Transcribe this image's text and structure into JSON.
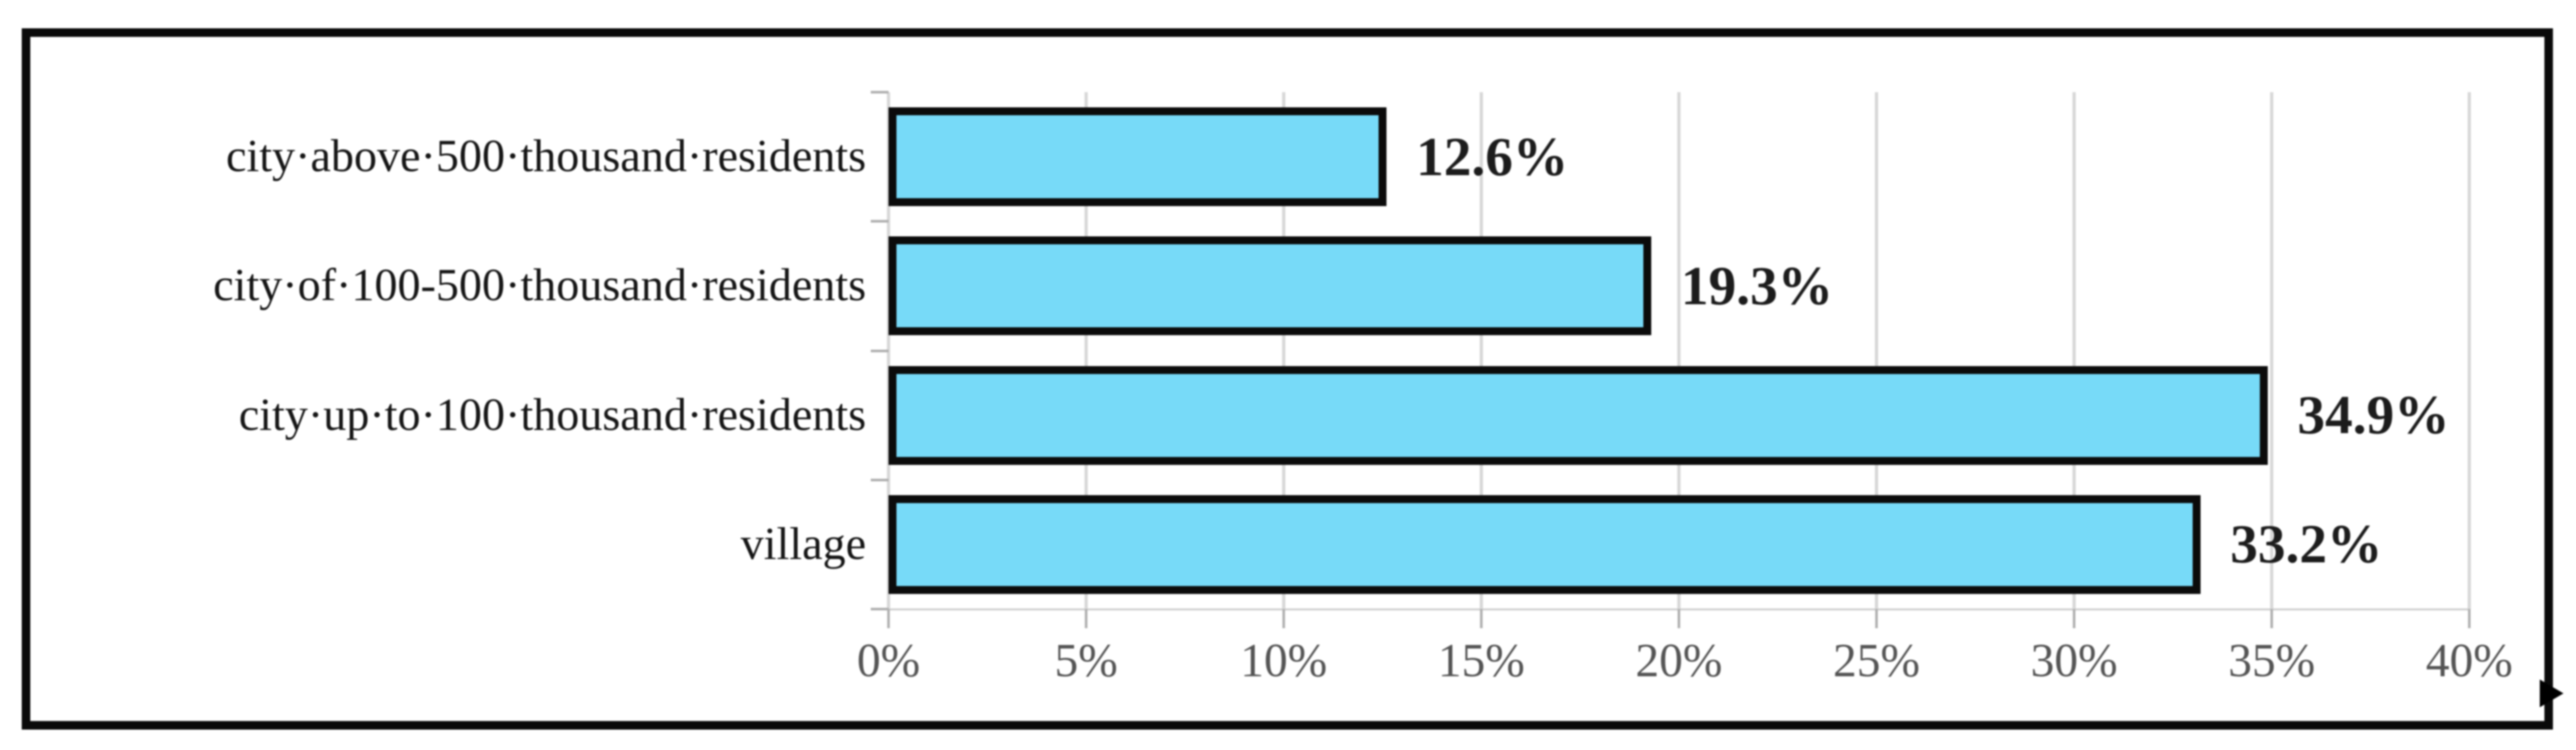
{
  "chart_data": {
    "type": "bar",
    "orientation": "horizontal",
    "title": "",
    "xlabel": "",
    "ylabel": "",
    "categories": [
      "city·above·500·thousand·residents",
      "city·of·100-500·thousand·residents",
      "city·up·to·100·thousand·residents",
      "village"
    ],
    "values": [
      12.6,
      19.3,
      34.9,
      33.2
    ],
    "data_labels": [
      "12.6%",
      "19.3%",
      "34.9%",
      "33.2%"
    ],
    "x_tick_labels": [
      "0%",
      "5%",
      "10%",
      "15%",
      "20%",
      "25%",
      "30%",
      "35%",
      "40%"
    ],
    "x_tick_values": [
      0,
      5,
      10,
      15,
      20,
      25,
      30,
      35,
      40
    ],
    "xlim": [
      0,
      40
    ],
    "grid": true,
    "legend_position": "none",
    "colors": {
      "bar_fill": "#77daf8",
      "bar_border": "#0b0b0b",
      "gridline": "#d8d8d8",
      "tick": "#b0b0b0",
      "axis_line": "#d0d0d0",
      "tick_label": "#545454",
      "category_label": "#151515",
      "data_label": "#1c1c1c",
      "frame_border": "#0a0a0a"
    }
  },
  "artifacts": {
    "left_margin_mark": ":",
    "right_border_nub": "small black right-pointing nub on frame border"
  }
}
